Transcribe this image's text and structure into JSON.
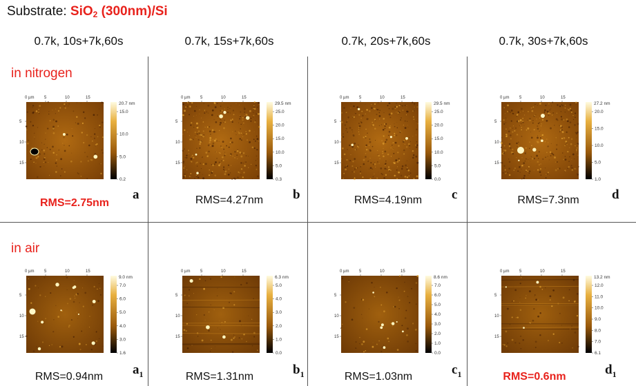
{
  "header": {
    "prefix": "Substrate: ",
    "formula_main": "SiO",
    "formula_sub": "2",
    "formula_rest": " (300nm)/Si"
  },
  "columns": [
    "0.7k, 10s+7k,60s",
    "0.7k, 15s+7k,60s",
    "0.7k, 20s+7k,60s",
    "0.7k, 30s+7k,60s"
  ],
  "rows": [
    {
      "label": "in nitrogen",
      "panels": [
        {
          "letter": "a",
          "sub": "",
          "rms": "RMS=2.75nm",
          "highlight": true,
          "top": "20.7 nm",
          "ticks": [
            "15.0",
            "10.0",
            "5.0",
            "0.2"
          ]
        },
        {
          "letter": "b",
          "sub": "",
          "rms": "RMS=4.27nm",
          "highlight": false,
          "top": "29.5 nm",
          "ticks": [
            "25.0",
            "20.0",
            "15.0",
            "10.0",
            "5.0",
            "0.3"
          ]
        },
        {
          "letter": "c",
          "sub": "",
          "rms": "RMS=4.19nm",
          "highlight": false,
          "top": "29.5 nm",
          "ticks": [
            "25.0",
            "20.0",
            "15.0",
            "10.0",
            "5.0",
            "0.0"
          ]
        },
        {
          "letter": "d",
          "sub": "",
          "rms": "RMS=7.3nm",
          "highlight": false,
          "top": "27.2 nm",
          "ticks": [
            "20.0",
            "15.0",
            "10.0",
            "5.0",
            "1.0"
          ]
        }
      ]
    },
    {
      "label": "in air",
      "panels": [
        {
          "letter": "a",
          "sub": "1",
          "rms": "RMS=0.94nm",
          "highlight": false,
          "top": "9.0 nm",
          "ticks": [
            "7.0",
            "6.0",
            "5.0",
            "4.0",
            "3.0",
            "1.6"
          ]
        },
        {
          "letter": "b",
          "sub": "1",
          "rms": "RMS=1.31nm",
          "highlight": false,
          "top": "6.3 nm",
          "ticks": [
            "5.0",
            "4.0",
            "3.0",
            "2.0",
            "1.0",
            "0.0"
          ]
        },
        {
          "letter": "c",
          "sub": "1",
          "rms": "RMS=1.03nm",
          "highlight": false,
          "top": "8.6 nm",
          "ticks": [
            "7.0",
            "6.0",
            "5.0",
            "4.0",
            "3.0",
            "2.0",
            "1.0",
            "0.0"
          ]
        },
        {
          "letter": "d",
          "sub": "1",
          "rms": "RMS=0.6nm",
          "highlight": true,
          "top": "13.2 nm",
          "ticks": [
            "12.0",
            "11.0",
            "10.0",
            "9.0",
            "8.0",
            "7.0",
            "6.1"
          ]
        }
      ]
    }
  ],
  "axis": {
    "unit": "0 µm",
    "xticks": [
      "5",
      "10",
      "15"
    ],
    "yticks": [
      "5",
      "10",
      "15"
    ]
  },
  "colors": {
    "accent": "#e8221c",
    "afm_dark": "#2a1202",
    "afm_mid": "#9a5a0c",
    "afm_light": "#f7e07a"
  }
}
